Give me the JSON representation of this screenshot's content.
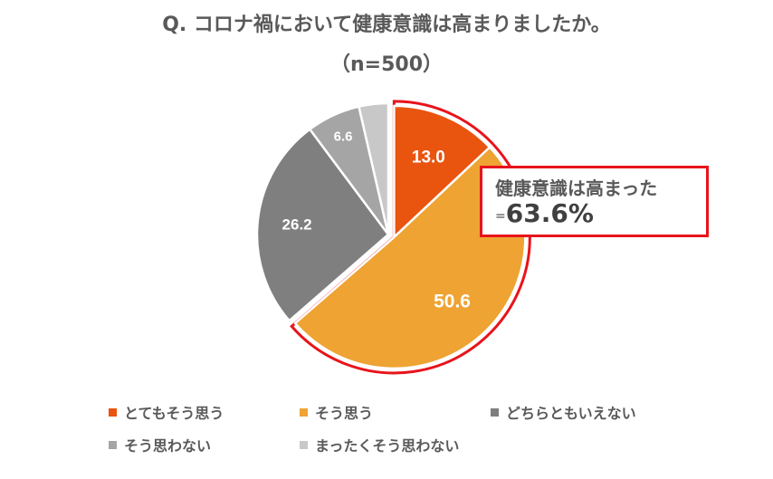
{
  "chart_data": {
    "type": "pie",
    "title": "Q. コロナ禍において健康意識は高まりましたか。",
    "subtitle": "（n=500）",
    "categories": [
      "とてもそう思う",
      "そう思う",
      "どちらともいえない",
      "そう思わない",
      "まったくそう思わない"
    ],
    "values": [
      13.0,
      50.6,
      26.2,
      6.6,
      3.6
    ],
    "data_labels": [
      "13.0",
      "50.6",
      "26.2",
      "6.6",
      ""
    ],
    "colors": [
      "#e9540f",
      "#eea332",
      "#7f7f7f",
      "#a5a5a5",
      "#c8c8c8"
    ],
    "label_colors": [
      "#ffffff",
      "#ffffff",
      "#ffffff",
      "#ffffff",
      "#ffffff"
    ],
    "legend_position": "bottom",
    "highlight": {
      "slices": [
        0,
        1
      ],
      "border_color": "#e8141b",
      "callout_line1": "健康意識は高まった",
      "callout_eq": "=",
      "callout_value": "63.6%"
    }
  }
}
